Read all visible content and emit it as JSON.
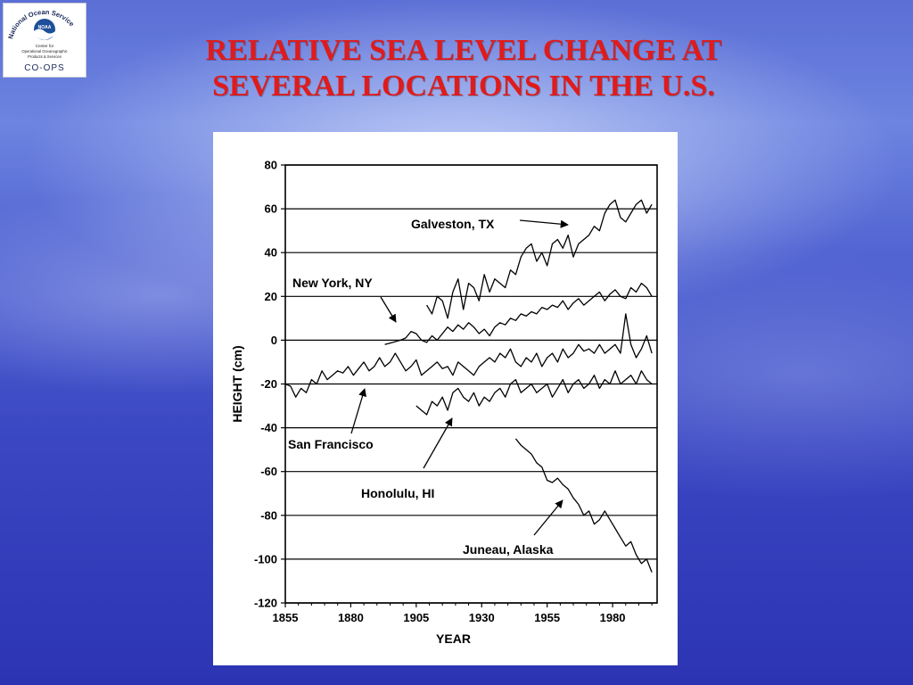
{
  "slide": {
    "title_line1": "RELATIVE SEA  LEVEL CHANGE AT",
    "title_line2": "SEVERAL LOCATIONS IN THE U.S.",
    "title_color": "#e01b1b"
  },
  "logo": {
    "ring_text": "National Ocean Service",
    "center_badge": "NOAA",
    "line1": "Center for",
    "line2": "Operational Oceanographic",
    "line3": "Products & Services",
    "abbrev": "CO-OPS"
  },
  "chart_data": {
    "type": "line",
    "title": "",
    "xlabel": "YEAR",
    "ylabel": "HEIGHT (cm)",
    "xlim": [
      1855,
      1997
    ],
    "ylim": [
      -120,
      80
    ],
    "xticks": [
      1855,
      1880,
      1905,
      1930,
      1955,
      1980
    ],
    "yticks": [
      80,
      60,
      40,
      20,
      0,
      -20,
      -40,
      -60,
      -80,
      -100,
      -120
    ],
    "grid": "horizontal",
    "series": [
      {
        "name": "Galveston, TX",
        "x": [
          1909,
          1911,
          1913,
          1915,
          1917,
          1919,
          1921,
          1923,
          1925,
          1927,
          1929,
          1931,
          1933,
          1935,
          1937,
          1939,
          1941,
          1943,
          1945,
          1947,
          1949,
          1951,
          1953,
          1955,
          1957,
          1959,
          1961,
          1963,
          1965,
          1967,
          1969,
          1971,
          1973,
          1975,
          1977,
          1979,
          1981,
          1983,
          1985,
          1987,
          1989,
          1991,
          1993,
          1995
        ],
        "y": [
          16,
          12,
          20,
          18,
          10,
          22,
          28,
          14,
          26,
          24,
          18,
          30,
          22,
          28,
          26,
          24,
          32,
          30,
          38,
          42,
          44,
          36,
          40,
          34,
          44,
          46,
          42,
          48,
          38,
          44,
          46,
          48,
          52,
          50,
          58,
          62,
          64,
          56,
          54,
          58,
          62,
          64,
          58,
          62
        ]
      },
      {
        "name": "New York, NY",
        "x": [
          1893,
          1896,
          1899,
          1901,
          1903,
          1905,
          1907,
          1909,
          1911,
          1913,
          1915,
          1917,
          1919,
          1921,
          1923,
          1925,
          1927,
          1929,
          1931,
          1933,
          1935,
          1937,
          1939,
          1941,
          1943,
          1945,
          1947,
          1949,
          1951,
          1953,
          1955,
          1957,
          1959,
          1961,
          1963,
          1965,
          1967,
          1969,
          1971,
          1973,
          1975,
          1977,
          1979,
          1981,
          1983,
          1985,
          1987,
          1989,
          1991,
          1993,
          1995
        ],
        "y": [
          -2,
          -1,
          0,
          1,
          4,
          3,
          0,
          -1,
          2,
          0,
          3,
          6,
          4,
          7,
          5,
          8,
          6,
          3,
          5,
          2,
          6,
          8,
          7,
          10,
          9,
          12,
          11,
          13,
          12,
          15,
          14,
          16,
          15,
          18,
          14,
          17,
          19,
          16,
          18,
          20,
          22,
          18,
          21,
          23,
          20,
          19,
          24,
          22,
          26,
          24,
          20
        ]
      },
      {
        "name": "San Francisco",
        "x": [
          1855,
          1857,
          1859,
          1861,
          1863,
          1865,
          1867,
          1869,
          1871,
          1873,
          1875,
          1877,
          1879,
          1881,
          1883,
          1885,
          1887,
          1889,
          1891,
          1893,
          1895,
          1897,
          1899,
          1901,
          1903,
          1905,
          1907,
          1909,
          1911,
          1913,
          1915,
          1917,
          1919,
          1921,
          1923,
          1925,
          1927,
          1929,
          1931,
          1933,
          1935,
          1937,
          1939,
          1941,
          1943,
          1945,
          1947,
          1949,
          1951,
          1953,
          1955,
          1957,
          1959,
          1961,
          1963,
          1965,
          1967,
          1969,
          1971,
          1973,
          1975,
          1977,
          1979,
          1981,
          1983,
          1985,
          1987,
          1989,
          1991,
          1993,
          1995
        ],
        "y": [
          -20,
          -21,
          -26,
          -22,
          -24,
          -18,
          -20,
          -14,
          -18,
          -16,
          -14,
          -15,
          -12,
          -16,
          -13,
          -10,
          -14,
          -12,
          -8,
          -12,
          -10,
          -6,
          -10,
          -14,
          -12,
          -9,
          -16,
          -14,
          -12,
          -10,
          -13,
          -12,
          -16,
          -10,
          -12,
          -14,
          -16,
          -12,
          -10,
          -8,
          -10,
          -6,
          -8,
          -4,
          -10,
          -12,
          -8,
          -10,
          -6,
          -12,
          -8,
          -6,
          -10,
          -4,
          -8,
          -6,
          -2,
          -5,
          -4,
          -6,
          -2,
          -6,
          -4,
          -2,
          -6,
          12,
          -2,
          -8,
          -4,
          2,
          -6
        ]
      },
      {
        "name": "Honolulu, HI",
        "x": [
          1905,
          1907,
          1909,
          1911,
          1913,
          1915,
          1917,
          1919,
          1921,
          1923,
          1925,
          1927,
          1929,
          1931,
          1933,
          1935,
          1937,
          1939,
          1941,
          1943,
          1945,
          1947,
          1949,
          1951,
          1953,
          1955,
          1957,
          1959,
          1961,
          1963,
          1965,
          1967,
          1969,
          1971,
          1973,
          1975,
          1977,
          1979,
          1981,
          1983,
          1985,
          1987,
          1989,
          1991,
          1993,
          1995
        ],
        "y": [
          -30,
          -32,
          -34,
          -28,
          -30,
          -26,
          -32,
          -24,
          -22,
          -26,
          -28,
          -24,
          -30,
          -26,
          -28,
          -24,
          -22,
          -26,
          -20,
          -18,
          -24,
          -22,
          -20,
          -24,
          -22,
          -20,
          -26,
          -22,
          -18,
          -24,
          -20,
          -18,
          -22,
          -20,
          -16,
          -22,
          -18,
          -20,
          -14,
          -20,
          -18,
          -16,
          -20,
          -14,
          -18,
          -20
        ]
      },
      {
        "name": "Juneau, Alaska",
        "x": [
          1943,
          1945,
          1947,
          1949,
          1951,
          1953,
          1955,
          1957,
          1959,
          1961,
          1963,
          1965,
          1967,
          1969,
          1971,
          1973,
          1975,
          1977,
          1979,
          1981,
          1983,
          1985,
          1987,
          1989,
          1991,
          1993,
          1995
        ],
        "y": [
          -45,
          -48,
          -50,
          -52,
          -56,
          -58,
          -64,
          -65,
          -63,
          -66,
          -68,
          -72,
          -75,
          -80,
          -78,
          -84,
          -82,
          -78,
          -82,
          -86,
          -90,
          -94,
          -92,
          -98,
          -102,
          -100,
          -106
        ]
      }
    ],
    "annotations": [
      {
        "text": "Galveston, TX",
        "series": "Galveston, TX"
      },
      {
        "text": "New York, NY",
        "series": "New York, NY"
      },
      {
        "text": "San Francisco",
        "series": "San Francisco"
      },
      {
        "text": "Honolulu, HI",
        "series": "Honolulu, HI"
      },
      {
        "text": "Juneau, Alaska",
        "series": "Juneau, Alaska"
      }
    ]
  }
}
